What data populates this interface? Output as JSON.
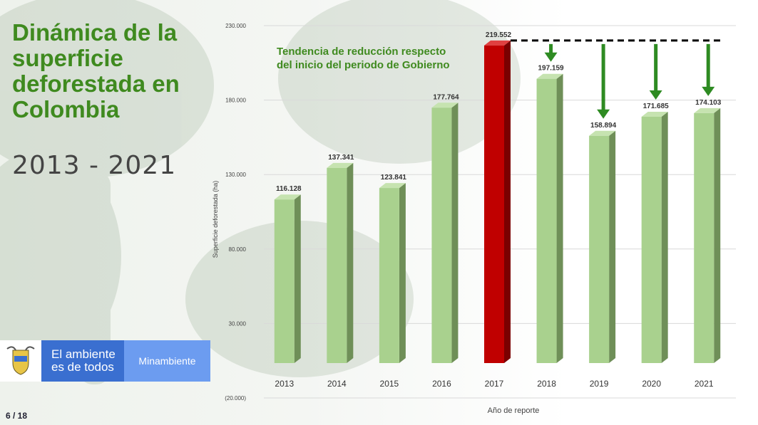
{
  "slide": {
    "title": "Dinámica de la superficie deforestada en Colombia",
    "subtitle": "2013 - 2021",
    "page": "6 / 18",
    "logo_main_line1": "El ambiente",
    "logo_main_line2": "es de todos",
    "logo_brand": "Minambiente"
  },
  "chart_data": {
    "type": "bar",
    "title": "",
    "xlabel": "Año de reporte",
    "ylabel": "Superficie deforestada (ha)",
    "categories": [
      "2013",
      "2014",
      "2015",
      "2016",
      "2017",
      "2018",
      "2019",
      "2020",
      "2021"
    ],
    "values": [
      116128,
      137341,
      123841,
      177764,
      219552,
      197159,
      158894,
      171685,
      174103
    ],
    "value_labels": [
      "116.128",
      "137.341",
      "123.841",
      "177.764",
      "219.552",
      "197.159",
      "158.894",
      "171.685",
      "174.103"
    ],
    "ylim": [
      -20000,
      230000
    ],
    "yticks": [
      -20000,
      30000,
      80000,
      130000,
      180000,
      230000
    ],
    "ytick_labels": [
      "(20.000)",
      "30.000",
      "80.000",
      "130.000",
      "180.000",
      "230.000"
    ],
    "grid": true,
    "bar_color": "#a9d18e",
    "highlight_color": "#c00000",
    "highlight_category": "2017",
    "annotation": {
      "line1": "Tendencia de reducción respecto",
      "line2": "del inicio del periodo de Gobierno",
      "reference_value": 219552,
      "arrow_color": "#2e8b22"
    }
  }
}
